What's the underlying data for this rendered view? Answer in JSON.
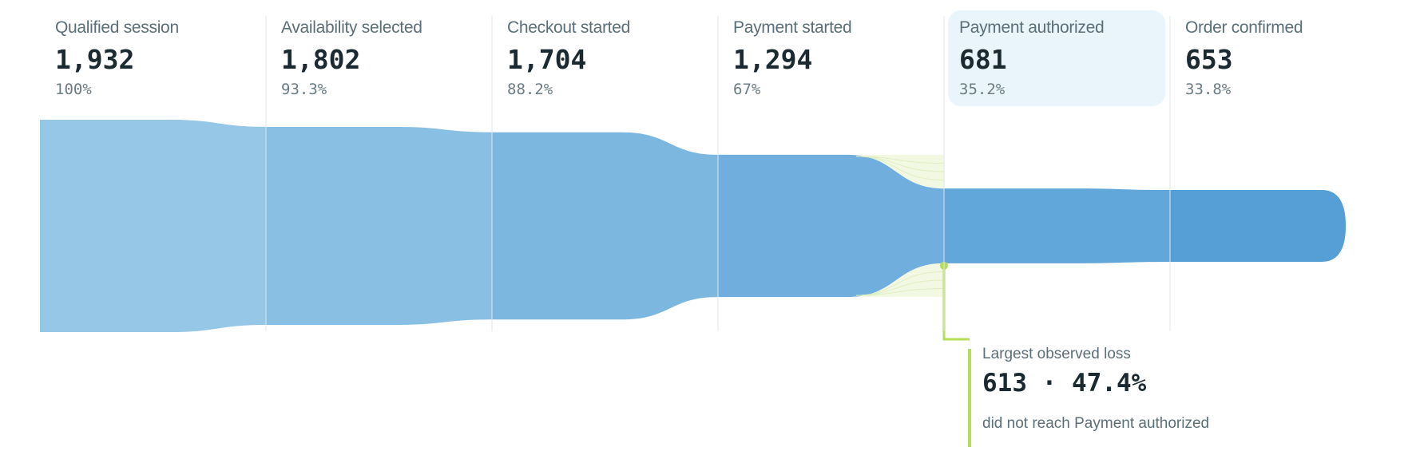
{
  "chart_data": {
    "type": "funnel",
    "stages": [
      {
        "name": "Qualified session",
        "count": 1932,
        "count_label": "1,932",
        "pct_label": "100%"
      },
      {
        "name": "Availability selected",
        "count": 1802,
        "count_label": "1,802",
        "pct_label": "93.3%"
      },
      {
        "name": "Checkout started",
        "count": 1704,
        "count_label": "1,704",
        "pct_label": "88.2%"
      },
      {
        "name": "Payment started",
        "count": 1294,
        "count_label": "1,294",
        "pct_label": "67%"
      },
      {
        "name": "Payment authorized",
        "count": 681,
        "count_label": "681",
        "pct_label": "35.2%",
        "highlighted": true
      },
      {
        "name": "Order confirmed",
        "count": 653,
        "count_label": "653",
        "pct_label": "33.8%"
      }
    ],
    "colors": [
      "#97c7e6",
      "#89bfe3",
      "#7cb7e0",
      "#6faedd",
      "#62a7da",
      "#569ed6"
    ],
    "loss_color": "#b6dc5c",
    "callout": {
      "title": "Largest observed loss",
      "value": "613 · 47.4%",
      "subtitle": "did not reach Payment authorized",
      "stage_index": 4
    }
  }
}
